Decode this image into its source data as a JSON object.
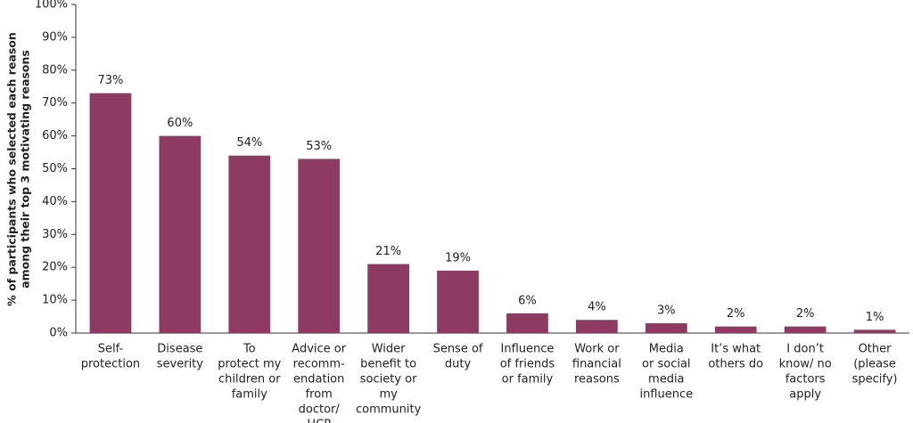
{
  "chart_data": {
    "type": "bar",
    "y_label": [
      "% of participants who selected each reason",
      "among their top 3 motivating reasons"
    ],
    "categories": [
      [
        "Self-",
        "protection"
      ],
      [
        "Disease",
        "severity"
      ],
      [
        "To",
        "protect my",
        "children or",
        "family"
      ],
      [
        "Advice or",
        "recomm-",
        "endation",
        "from",
        "doctor/",
        "HCP"
      ],
      [
        "Wider",
        "benefit to",
        "society or",
        "my",
        "community"
      ],
      [
        "Sense of",
        "duty"
      ],
      [
        "Influence",
        "of friends",
        "or family"
      ],
      [
        "Work or",
        "financial",
        "reasons"
      ],
      [
        "Media",
        "or social",
        "media",
        "influence"
      ],
      [
        "It’s what",
        "others do"
      ],
      [
        "I don’t",
        "know/ no",
        "factors",
        "apply"
      ],
      [
        "Other",
        "(please",
        "specify)"
      ]
    ],
    "values": [
      73,
      60,
      54,
      53,
      21,
      19,
      6,
      4,
      3,
      2,
      2,
      1
    ],
    "value_labels": [
      "73%",
      "60%",
      "54%",
      "53%",
      "21%",
      "19%",
      "6%",
      "4%",
      "3%",
      "2%",
      "2%",
      "1%"
    ],
    "color": "#8e3b63",
    "ylim": [
      0,
      100
    ],
    "yticks": [
      {
        "value": 0,
        "label": "0%"
      },
      {
        "value": 10,
        "label": "10%"
      },
      {
        "value": 20,
        "label": "20%"
      },
      {
        "value": 30,
        "label": "30%"
      },
      {
        "value": 40,
        "label": "40%"
      },
      {
        "value": 50,
        "label": "50%"
      },
      {
        "value": 60,
        "label": "60%"
      },
      {
        "value": 70,
        "label": "70%"
      },
      {
        "value": 80,
        "label": "80%"
      },
      {
        "value": 90,
        "label": "90%"
      },
      {
        "value": 100,
        "label": "100%"
      }
    ],
    "grid": false
  }
}
